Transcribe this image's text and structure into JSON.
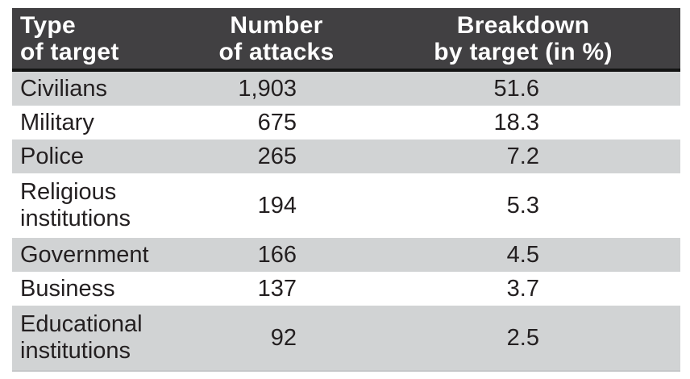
{
  "chart_data": {
    "type": "table",
    "columns": [
      {
        "id": "target",
        "label": "Type of target",
        "line1": "Type",
        "line2": "of target"
      },
      {
        "id": "attacks",
        "label": "Number of attacks",
        "line1": "Number",
        "line2": "of attacks"
      },
      {
        "id": "breakdown",
        "label": "Breakdown by target (in %)",
        "line1": "Breakdown",
        "line2": "by target (in %)"
      }
    ],
    "rows": [
      {
        "target": "Civilians",
        "attacks": "1,903",
        "breakdown": "51.6",
        "attacks_value": 1903,
        "breakdown_value": 51.6
      },
      {
        "target": "Military",
        "attacks": "675",
        "breakdown": "18.3",
        "attacks_value": 675,
        "breakdown_value": 18.3
      },
      {
        "target": "Police",
        "attacks": "265",
        "breakdown": "7.2",
        "attacks_value": 265,
        "breakdown_value": 7.2
      },
      {
        "target": "Religious institutions",
        "attacks": "194",
        "breakdown": "5.3",
        "attacks_value": 194,
        "breakdown_value": 5.3
      },
      {
        "target": "Government",
        "attacks": "166",
        "breakdown": "4.5",
        "attacks_value": 166,
        "breakdown_value": 4.5
      },
      {
        "target": "Business",
        "attacks": "137",
        "breakdown": "3.7",
        "attacks_value": 137,
        "breakdown_value": 3.7
      },
      {
        "target": "Educational institutions",
        "attacks": "92",
        "breakdown": "2.5",
        "attacks_value": 92,
        "breakdown_value": 2.5
      }
    ]
  },
  "colors": {
    "header_bg": "#414042",
    "header_text": "#ffffff",
    "header_rule": "#141414",
    "row_alt_bg": "#d1d3d4",
    "row_bg": "#ffffff",
    "body_text": "#231f20",
    "bottom_rule": "#c6c8ca"
  }
}
